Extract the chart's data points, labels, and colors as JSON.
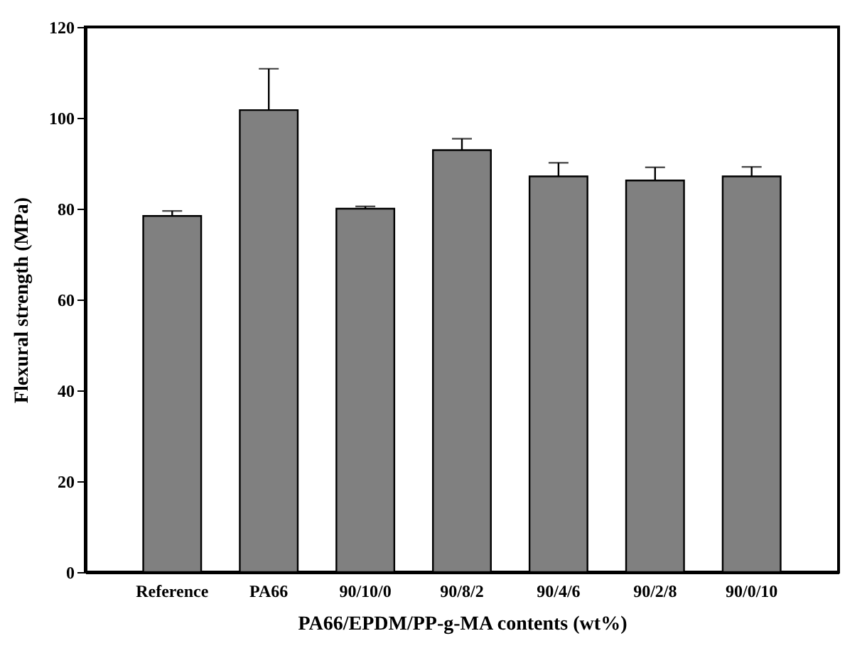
{
  "chart_data": {
    "type": "bar",
    "xlabel": "PA66/EPDM/PP-g-MA contents (wt%)",
    "ylabel": "Flexural strength (MPa)",
    "categories": [
      "Reference",
      "PA66",
      "90/10/0",
      "90/8/2",
      "90/4/6",
      "90/2/8",
      "90/0/10"
    ],
    "values": [
      78.4,
      101.7,
      80.0,
      92.9,
      87.1,
      86.2,
      87.1
    ],
    "errors": [
      [
        78.4,
        79.5
      ],
      [
        101.7,
        110.8
      ],
      [
        80.0,
        80.5
      ],
      [
        92.9,
        95.4
      ],
      [
        87.1,
        90.1
      ],
      [
        86.2,
        89.1
      ],
      [
        87.1,
        89.2
      ]
    ],
    "color": "#808080",
    "ylim": [
      0,
      120
    ],
    "yticks": [
      0,
      20,
      40,
      60,
      80,
      100,
      120
    ],
    "grid": false
  }
}
